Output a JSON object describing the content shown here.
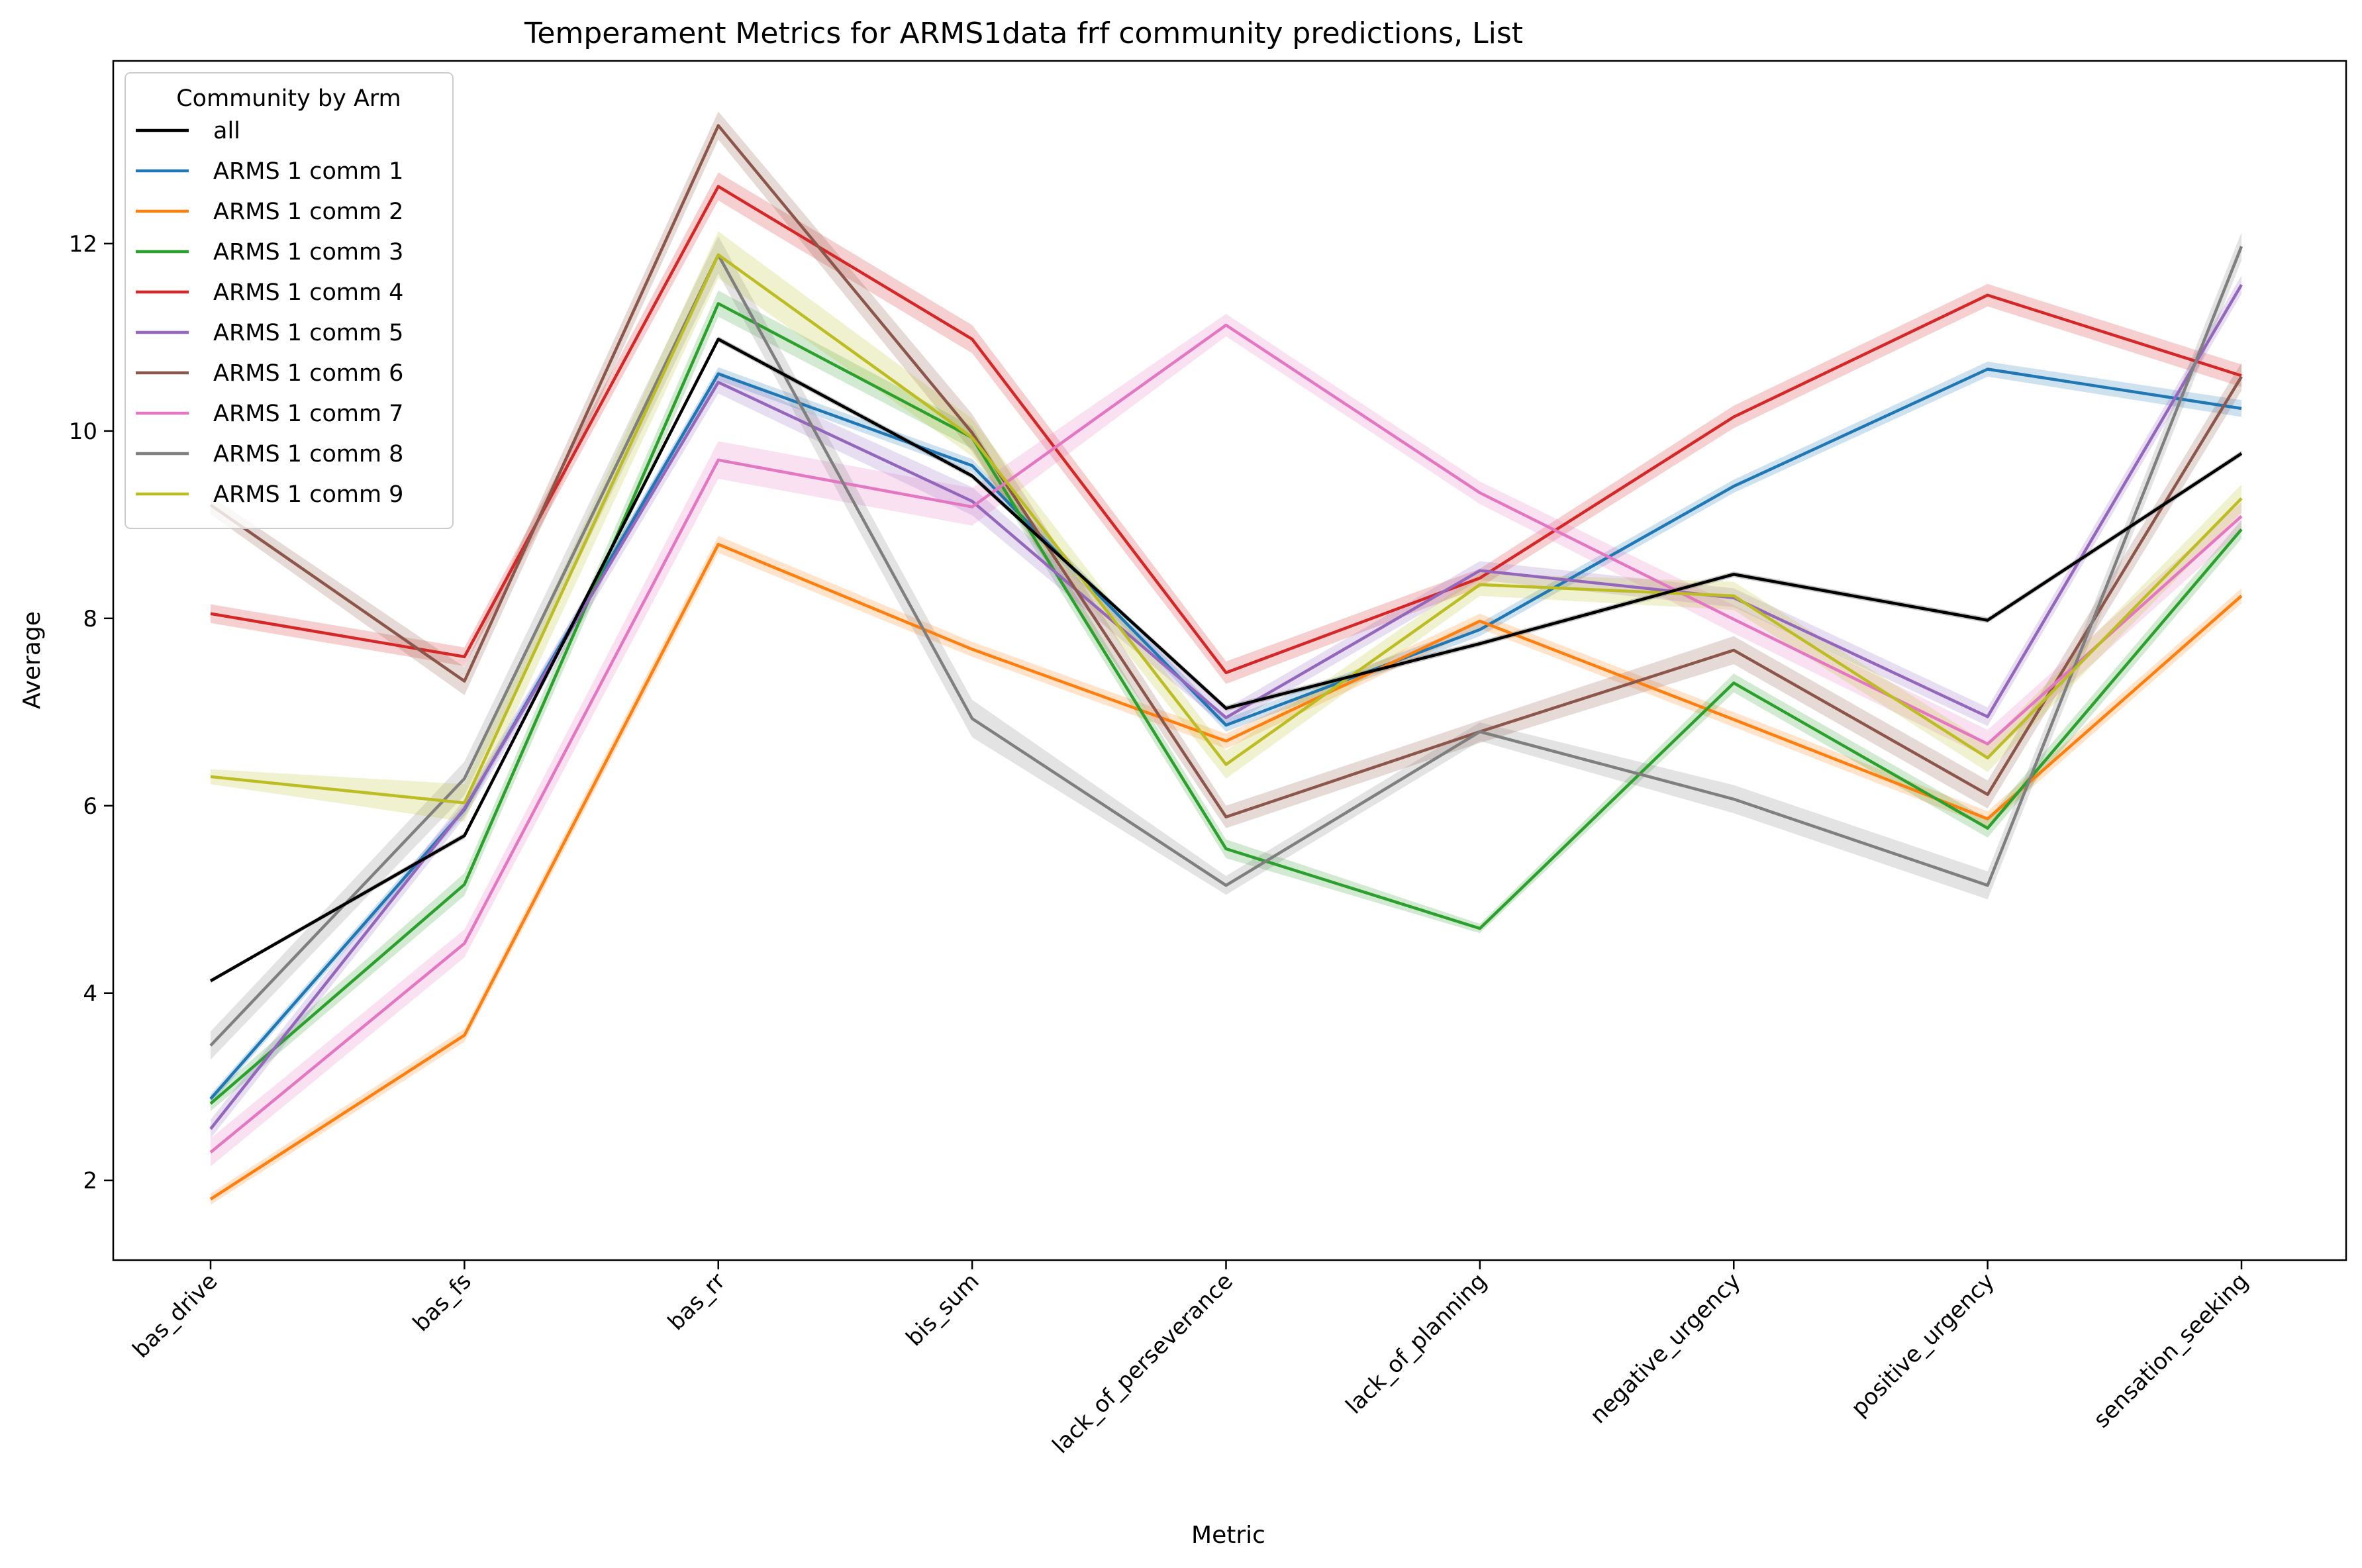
{
  "chart_data": {
    "type": "line",
    "title": "Temperament Metrics for ARMS1data frf community predictions, List",
    "xlabel": "Metric",
    "ylabel": "Average",
    "ylim": [
      1.15,
      13.95
    ],
    "yticks": [
      2,
      4,
      6,
      8,
      10,
      12
    ],
    "grid": false,
    "confidence_bands": true,
    "legend": {
      "title": "Community by Arm",
      "position": "top-left"
    },
    "categories": [
      "bas_drive",
      "bas_fs",
      "bas_rr",
      "bis_sum",
      "lack_of_perseverance",
      "lack_of_planning",
      "negative_urgency",
      "positive_urgency",
      "sensation_seeking"
    ],
    "series": [
      {
        "name": "all",
        "color": "#000000",
        "values": [
          4.13,
          5.68,
          10.98,
          9.52,
          7.04,
          7.73,
          8.47,
          7.98,
          9.76
        ],
        "band": [
          0.02,
          0.03,
          0.03,
          0.03,
          0.03,
          0.03,
          0.03,
          0.03,
          0.03
        ]
      },
      {
        "name": "ARMS 1 comm 1",
        "color": "#1f77b4",
        "values": [
          2.87,
          5.96,
          10.61,
          9.63,
          6.86,
          7.88,
          9.41,
          10.66,
          10.24
        ],
        "band": [
          0.05,
          0.06,
          0.07,
          0.07,
          0.07,
          0.07,
          0.07,
          0.08,
          0.09
        ]
      },
      {
        "name": "ARMS 1 comm 2",
        "color": "#ff7f0e",
        "values": [
          1.8,
          3.55,
          8.79,
          7.67,
          6.69,
          7.97,
          6.92,
          5.86,
          8.24
        ],
        "band": [
          0.06,
          0.07,
          0.09,
          0.08,
          0.08,
          0.08,
          0.08,
          0.08,
          0.08
        ]
      },
      {
        "name": "ARMS 1 comm 3",
        "color": "#2ca02c",
        "values": [
          2.82,
          5.16,
          11.36,
          9.93,
          5.54,
          4.69,
          7.31,
          5.76,
          8.95
        ],
        "band": [
          0.08,
          0.12,
          0.14,
          0.12,
          0.1,
          0.05,
          0.1,
          0.1,
          0.1
        ]
      },
      {
        "name": "ARMS 1 comm 4",
        "color": "#d62728",
        "values": [
          8.05,
          7.59,
          12.61,
          10.98,
          7.42,
          8.43,
          10.15,
          11.45,
          10.59
        ],
        "band": [
          0.1,
          0.1,
          0.15,
          0.15,
          0.12,
          0.1,
          0.12,
          0.12,
          0.12
        ]
      },
      {
        "name": "ARMS 1 comm 5",
        "color": "#9467bd",
        "values": [
          2.55,
          5.97,
          10.52,
          9.25,
          6.94,
          8.51,
          8.22,
          6.95,
          11.56
        ],
        "band": [
          0.1,
          0.1,
          0.12,
          0.15,
          0.1,
          0.1,
          0.1,
          0.1,
          0.1
        ]
      },
      {
        "name": "ARMS 1 comm 6",
        "color": "#8c564b",
        "values": [
          9.21,
          7.33,
          13.26,
          9.98,
          5.88,
          6.79,
          7.66,
          6.12,
          10.58
        ],
        "band": [
          0.1,
          0.15,
          0.15,
          0.2,
          0.12,
          0.12,
          0.15,
          0.15,
          0.15
        ]
      },
      {
        "name": "ARMS 1 comm 7",
        "color": "#e377c2",
        "values": [
          2.3,
          4.53,
          9.69,
          9.19,
          11.13,
          9.34,
          7.99,
          6.66,
          9.09
        ],
        "band": [
          0.15,
          0.15,
          0.2,
          0.2,
          0.12,
          0.12,
          0.15,
          0.15,
          0.15
        ]
      },
      {
        "name": "ARMS 1 comm 8",
        "color": "#7f7f7f",
        "values": [
          3.44,
          6.29,
          11.88,
          6.93,
          5.15,
          6.79,
          6.07,
          5.15,
          11.97
        ],
        "band": [
          0.15,
          0.18,
          0.2,
          0.2,
          0.1,
          0.1,
          0.15,
          0.15,
          0.15
        ]
      },
      {
        "name": "ARMS 1 comm 9",
        "color": "#bcbd22",
        "values": [
          6.31,
          6.03,
          11.88,
          9.93,
          6.44,
          8.36,
          8.24,
          6.51,
          9.28
        ],
        "band": [
          0.08,
          0.2,
          0.25,
          0.2,
          0.15,
          0.12,
          0.15,
          0.15,
          0.15
        ]
      }
    ]
  }
}
